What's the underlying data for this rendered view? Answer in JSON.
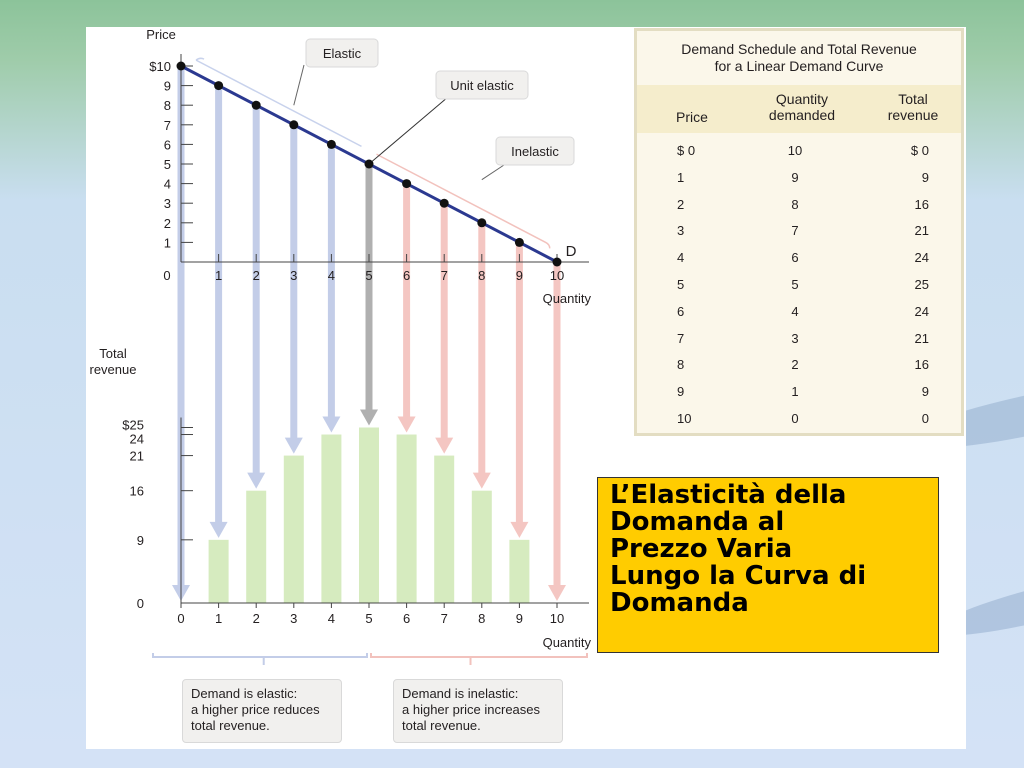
{
  "colors": {
    "demand_line": "#2b3990",
    "point": "#111111",
    "elastic_arrow": "#c3cde8",
    "unit_arrow": "#b0b0b0",
    "inelastic_arrow": "#f4c6c2",
    "bar": "#d6ebbf",
    "callout": "#f1f0ee",
    "note_bg": "#ffcc00"
  },
  "chart_data": [
    {
      "type": "line",
      "ylabel": "Price",
      "xlabel": "Quantity",
      "y_ticks": [
        "$10",
        "9",
        "8",
        "7",
        "6",
        "5",
        "4",
        "3",
        "2",
        "1"
      ],
      "x_ticks": [
        "0",
        "1",
        "2",
        "3",
        "4",
        "5",
        "6",
        "7",
        "8",
        "9",
        "10"
      ],
      "ylim": [
        0,
        10
      ],
      "xlim": [
        0,
        10
      ],
      "curve_label": "D",
      "x": [
        0,
        1,
        2,
        3,
        4,
        5,
        6,
        7,
        8,
        9,
        10
      ],
      "y": [
        10,
        9,
        8,
        7,
        6,
        5,
        4,
        3,
        2,
        1,
        0
      ],
      "annotations": [
        "Elastic",
        "Unit elastic",
        "Inelastic"
      ]
    },
    {
      "type": "bar",
      "ylabel": "Total revenue",
      "xlabel": "Quantity",
      "y_ticks": [
        "$25",
        "24",
        "21",
        "16",
        "9",
        "0"
      ],
      "y_tick_values": [
        25,
        24,
        21,
        16,
        9,
        0
      ],
      "x_ticks": [
        "0",
        "1",
        "2",
        "3",
        "4",
        "5",
        "6",
        "7",
        "8",
        "9",
        "10"
      ],
      "ylim": [
        0,
        25
      ],
      "categories": [
        0,
        1,
        2,
        3,
        4,
        5,
        6,
        7,
        8,
        9,
        10
      ],
      "values": [
        0,
        9,
        16,
        21,
        24,
        25,
        24,
        21,
        16,
        9,
        0
      ]
    }
  ],
  "table": {
    "title_line1": "Demand Schedule and Total Revenue",
    "title_line2": "for a Linear Demand Curve",
    "headers": {
      "price": "Price",
      "qty_1": "Quantity",
      "qty_2": "demanded",
      "rev_1": "Total",
      "rev_2": "revenue"
    },
    "rows": [
      {
        "price": "$ 0",
        "qty": "10",
        "rev": "$ 0"
      },
      {
        "price": "1",
        "qty": "9",
        "rev": "9"
      },
      {
        "price": "2",
        "qty": "8",
        "rev": "16"
      },
      {
        "price": "3",
        "qty": "7",
        "rev": "21"
      },
      {
        "price": "4",
        "qty": "6",
        "rev": "24"
      },
      {
        "price": "5",
        "qty": "5",
        "rev": "25"
      },
      {
        "price": "6",
        "qty": "4",
        "rev": "24"
      },
      {
        "price": "7",
        "qty": "3",
        "rev": "21"
      },
      {
        "price": "8",
        "qty": "2",
        "rev": "16"
      },
      {
        "price": "9",
        "qty": "1",
        "rev": "9"
      },
      {
        "price": "10",
        "qty": "0",
        "rev": "0"
      }
    ]
  },
  "notes": {
    "elastic": [
      "Demand is elastic:",
      "a higher price reduces",
      "total revenue."
    ],
    "inelastic": [
      "Demand is inelastic:",
      "a higher price increases",
      "total revenue."
    ]
  },
  "title_box": [
    "L’Elasticità della",
    "Domanda al",
    "Prezzo Varia",
    "Lungo la Curva di",
    "Domanda"
  ]
}
